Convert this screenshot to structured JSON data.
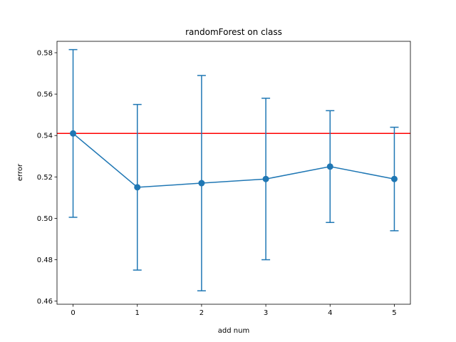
{
  "chart_data": {
    "type": "line",
    "title": "randomForest on class",
    "xlabel": "add num",
    "ylabel": "error",
    "x": [
      0,
      1,
      2,
      3,
      4,
      5
    ],
    "xticks": [
      "0",
      "1",
      "2",
      "3",
      "4",
      "5"
    ],
    "xlim": [
      -0.25,
      5.25
    ],
    "ylim": [
      0.4585,
      0.5855
    ],
    "yticks": [
      "0.46",
      "0.48",
      "0.50",
      "0.52",
      "0.54",
      "0.56",
      "0.58"
    ],
    "grid": false,
    "series": [
      {
        "values": [
          0.541,
          0.515,
          0.517,
          0.519,
          0.525,
          0.519
        ],
        "errors": [
          0.0405,
          0.04,
          0.052,
          0.039,
          0.027,
          0.025
        ],
        "color": "#1f77b4",
        "marker": "circle"
      }
    ],
    "reference_line": {
      "y": 0.541,
      "color": "#ff0000"
    }
  }
}
